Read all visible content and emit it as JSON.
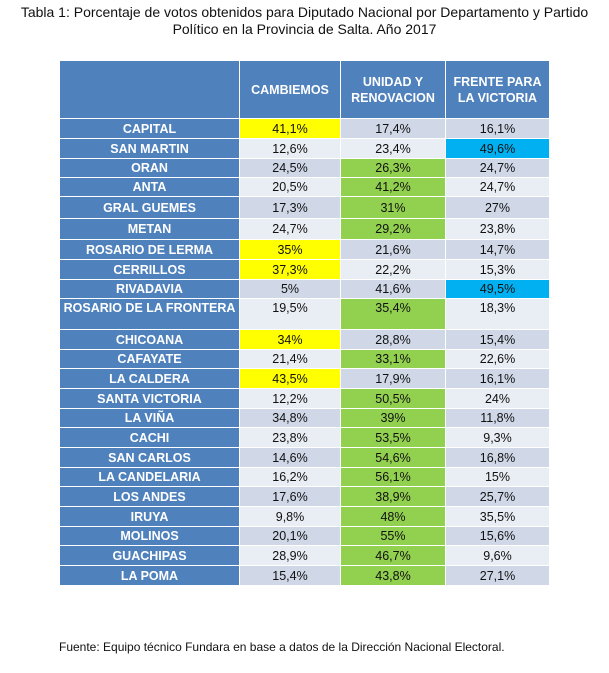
{
  "title_line1": "Tabla 1: Porcentaje de votos obtenidos para Diputado Nacional por Departamento y Partido",
  "title_line2": "Político en la Provincia de Salta. Año 2017",
  "headers": [
    "",
    "CAMBIEMOS",
    "UNIDAD Y RENOVACION",
    "FRENTE PARA LA VICTORIA"
  ],
  "rows": [
    {
      "dept": "CAPITAL",
      "values": [
        "41,1%",
        "17,4%",
        "16,1%"
      ],
      "highlight": [
        "yellow",
        "",
        ""
      ]
    },
    {
      "dept": "SAN MARTIN",
      "values": [
        "12,6%",
        "23,4%",
        "49,6%"
      ],
      "highlight": [
        "",
        "",
        "cyan"
      ]
    },
    {
      "dept": "ORAN",
      "values": [
        "24,5%",
        "26,3%",
        "24,7%"
      ],
      "highlight": [
        "",
        "green",
        ""
      ]
    },
    {
      "dept": "ANTA",
      "values": [
        "20,5%",
        "41,2%",
        "24,7%"
      ],
      "highlight": [
        "",
        "green",
        ""
      ]
    },
    {
      "dept": "GRAL GUEMES",
      "values": [
        "17,3%",
        "31%",
        "27%"
      ],
      "highlight": [
        "",
        "green",
        ""
      ]
    },
    {
      "dept": "METAN",
      "values": [
        "24,7%",
        "29,2%",
        "23,8%"
      ],
      "highlight": [
        "",
        "green",
        ""
      ]
    },
    {
      "dept": "ROSARIO DE LERMA",
      "values": [
        "35%",
        "21,6%",
        "14,7%"
      ],
      "highlight": [
        "yellow",
        "",
        ""
      ]
    },
    {
      "dept": "CERRILLOS",
      "values": [
        "37,3%",
        "22,2%",
        "15,3%"
      ],
      "highlight": [
        "yellow",
        "",
        ""
      ]
    },
    {
      "dept": "RIVADAVIA",
      "values": [
        "5%",
        "41,6%",
        "49,5%"
      ],
      "highlight": [
        "",
        "",
        "cyan"
      ]
    },
    {
      "dept": "ROSARIO DE LA FRONTERA",
      "values": [
        "19,5%",
        "35,4%",
        "18,3%"
      ],
      "highlight": [
        "",
        "green",
        ""
      ]
    },
    {
      "dept": "CHICOANA",
      "values": [
        "34%",
        "28,8%",
        "15,4%"
      ],
      "highlight": [
        "yellow",
        "",
        ""
      ]
    },
    {
      "dept": "CAFAYATE",
      "values": [
        "21,4%",
        "33,1%",
        "22,6%"
      ],
      "highlight": [
        "",
        "green",
        ""
      ]
    },
    {
      "dept": "LA CALDERA",
      "values": [
        "43,5%",
        "17,9%",
        "16,1%"
      ],
      "highlight": [
        "yellow",
        "",
        ""
      ]
    },
    {
      "dept": "SANTA VICTORIA",
      "values": [
        "12,2%",
        "50,5%",
        "24%"
      ],
      "highlight": [
        "",
        "green",
        ""
      ]
    },
    {
      "dept": "LA VIÑA",
      "values": [
        "34,8%",
        "39%",
        "11,8%"
      ],
      "highlight": [
        "",
        "green",
        ""
      ]
    },
    {
      "dept": "CACHI",
      "values": [
        "23,8%",
        "53,5%",
        "9,3%"
      ],
      "highlight": [
        "",
        "green",
        ""
      ]
    },
    {
      "dept": "SAN CARLOS",
      "values": [
        "14,6%",
        "54,6%",
        "16,8%"
      ],
      "highlight": [
        "",
        "green",
        ""
      ]
    },
    {
      "dept": "LA CANDELARIA",
      "values": [
        "16,2%",
        "56,1%",
        "15%"
      ],
      "highlight": [
        "",
        "green",
        ""
      ]
    },
    {
      "dept": "LOS ANDES",
      "values": [
        "17,6%",
        "38,9%",
        "25,7%"
      ],
      "highlight": [
        "",
        "green",
        ""
      ]
    },
    {
      "dept": "IRUYA",
      "values": [
        "9,8%",
        "48%",
        "35,5%"
      ],
      "highlight": [
        "",
        "green",
        ""
      ]
    },
    {
      "dept": "MOLINOS",
      "values": [
        "20,1%",
        "55%",
        "15,6%"
      ],
      "highlight": [
        "",
        "green",
        ""
      ]
    },
    {
      "dept": "GUACHIPAS",
      "values": [
        "28,9%",
        "46,7%",
        "9,6%"
      ],
      "highlight": [
        "",
        "green",
        ""
      ]
    },
    {
      "dept": "LA POMA",
      "values": [
        "15,4%",
        "43,8%",
        "27,1%"
      ],
      "highlight": [
        "",
        "green",
        ""
      ]
    }
  ],
  "fuente": "Fuente:   Equipo técnico Fundara en base a datos de la Dirección Nacional Electoral.",
  "colors": {
    "header_blue": "#4f81bd",
    "yellow": "#ffff00",
    "green": "#92d050",
    "cyan": "#00b0f0",
    "row_light": "#e9edf4",
    "row_dark": "#d0d8e8"
  }
}
